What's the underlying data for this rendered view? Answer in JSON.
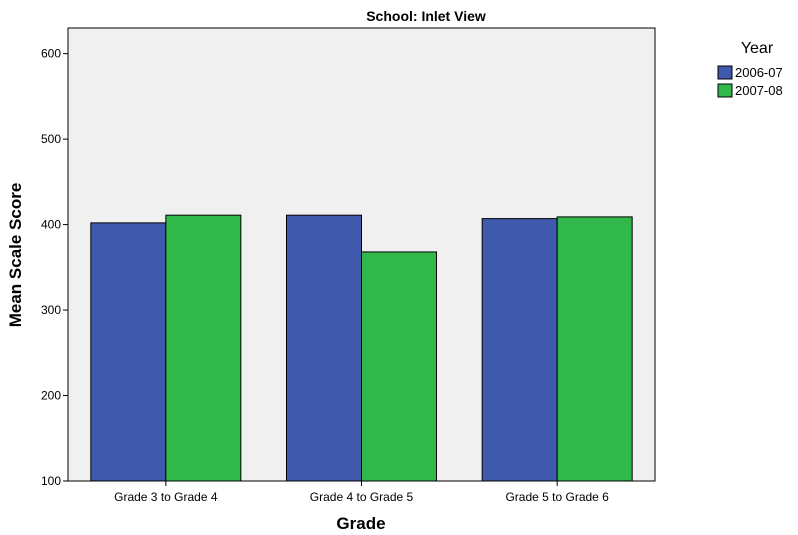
{
  "chart_data": {
    "type": "bar",
    "title": "School: Inlet View",
    "xlabel": "Grade",
    "ylabel": "Mean Scale Score",
    "categories": [
      "Grade 3 to Grade 4",
      "Grade 4 to Grade 5",
      "Grade 5 to Grade 6"
    ],
    "series": [
      {
        "name": "2006-07",
        "values": [
          402,
          411,
          407
        ],
        "color": "#3f59ad"
      },
      {
        "name": "2007-08",
        "values": [
          411,
          368,
          409
        ],
        "color": "#31b84a"
      }
    ],
    "ylim": [
      100,
      630
    ],
    "yticks": [
      "100",
      "200",
      "300",
      "400",
      "500",
      "600"
    ],
    "ytick_values": [
      100,
      200,
      300,
      400,
      500,
      600
    ],
    "legend": {
      "title": "Year",
      "position": "top-right"
    },
    "plot_background": "#f0f0f0",
    "grid": false
  }
}
